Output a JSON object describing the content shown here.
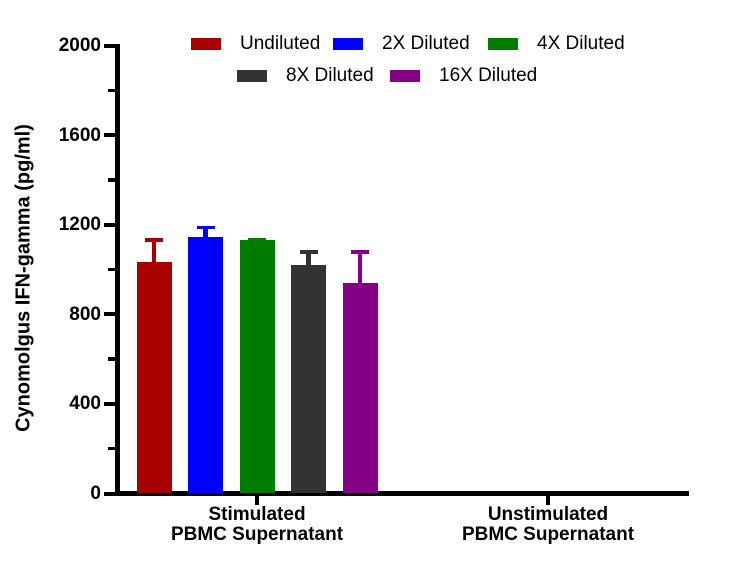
{
  "chart_data": {
    "type": "bar",
    "title": "",
    "ylabel": "Cynomolgus IFN-gamma (pg/ml)",
    "xlabel": "",
    "ylim": [
      0,
      2000
    ],
    "y_major_ticks": [
      0,
      400,
      800,
      1200,
      1600,
      2000
    ],
    "y_minor_step": 200,
    "grid": "off",
    "legend_position": "top",
    "categories": [
      {
        "line1": "Stimulated",
        "line2": "PBMC Supernatant"
      },
      {
        "line1": "Unstimulated",
        "line2": "PBMC Supernatant"
      }
    ],
    "series": [
      {
        "name": "Undiluted",
        "color": "#A80000",
        "values": [
          1035,
          0
        ],
        "error_upper": [
          105,
          0
        ]
      },
      {
        "name": "2X Diluted",
        "color": "#0000FF",
        "values": [
          1145,
          0
        ],
        "error_upper": [
          50,
          0
        ]
      },
      {
        "name": "4X Diluted",
        "color": "#007C00",
        "values": [
          1130,
          0
        ],
        "error_upper": [
          10,
          0
        ]
      },
      {
        "name": "8X Diluted",
        "color": "#333333",
        "values": [
          1020,
          0
        ],
        "error_upper": [
          65,
          0
        ]
      },
      {
        "name": "16X Diluted",
        "color": "#850085",
        "values": [
          940,
          0
        ],
        "error_upper": [
          145,
          0
        ]
      }
    ],
    "axis_color": "#000000",
    "background_color": "#FFFFFF"
  }
}
